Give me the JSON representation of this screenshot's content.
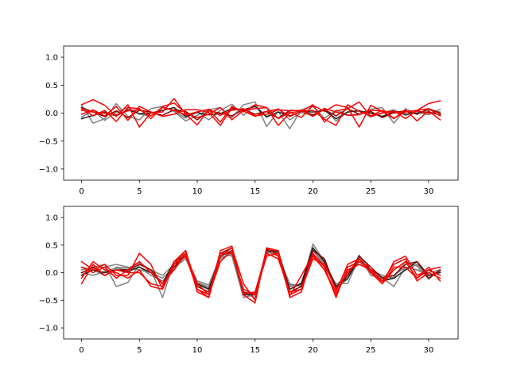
{
  "colors": {
    "gray": "#808080",
    "black": "#202020",
    "darkred": "#8b0000",
    "red": "#ff0000"
  },
  "chart_data": [
    {
      "type": "line",
      "title": "",
      "xlabel": "",
      "ylabel": "",
      "xlim": [
        -1.55,
        32.55
      ],
      "ylim": [
        -1.2,
        1.2
      ],
      "xticks": [
        0,
        5,
        10,
        15,
        20,
        25,
        30
      ],
      "xtick_labels": [
        "0",
        "5",
        "10",
        "15",
        "20",
        "25",
        "30"
      ],
      "yticks": [
        -1.0,
        -0.5,
        0.0,
        0.5,
        1.0
      ],
      "ytick_labels": [
        "−1.0",
        "−0.5",
        "0.0",
        "0.5",
        "1.0"
      ],
      "grid": false,
      "x": [
        0,
        1,
        2,
        3,
        4,
        5,
        6,
        7,
        8,
        9,
        10,
        11,
        12,
        13,
        14,
        15,
        16,
        17,
        18,
        19,
        20,
        21,
        22,
        23,
        24,
        25,
        26,
        27,
        28,
        29,
        30,
        31
      ],
      "series": [
        {
          "color": "gray",
          "values": [
            0.15,
            -0.18,
            -0.1,
            0.17,
            -0.06,
            -0.12,
            0.08,
            0.12,
            0.03,
            -0.14,
            -0.04,
            0.06,
            0.1,
            -0.08,
            0.15,
            0.2,
            -0.24,
            0.03,
            -0.28,
            0.06,
            0.12,
            -0.09,
            0.05,
            -0.03,
            -0.02,
            0.07,
            0.1,
            -0.18,
            0.08,
            -0.02,
            0.06,
            0.02
          ]
        },
        {
          "color": "gray",
          "values": [
            -0.07,
            0.05,
            -0.13,
            0.02,
            0.1,
            -0.02,
            -0.05,
            0.11,
            0.04,
            -0.09,
            0.03,
            -0.12,
            0.05,
            0.16,
            -0.04,
            0.13,
            -0.06,
            0.08,
            -0.12,
            0.01,
            -0.04,
            0.09,
            -0.14,
            0.02,
            0.05,
            -0.07,
            0.01,
            0.06,
            -0.04,
            0.03,
            -0.03,
            0.07
          ]
        },
        {
          "color": "black",
          "values": [
            -0.1,
            -0.04,
            0.02,
            -0.05,
            0.06,
            -0.01,
            0.0,
            0.05,
            0.1,
            -0.06,
            0.01,
            -0.03,
            -0.01,
            0.08,
            0.06,
            0.12,
            -0.07,
            0.02,
            -0.05,
            0.03,
            0.02,
            0.05,
            -0.1,
            0.02,
            0.04,
            0.0,
            -0.06,
            0.03,
            -0.02,
            0.0,
            0.02,
            -0.03
          ]
        },
        {
          "color": "darkred",
          "values": [
            0.1,
            0.02,
            -0.06,
            0.04,
            -0.08,
            0.05,
            0.02,
            -0.04,
            0.06,
            0.03,
            -0.12,
            0.04,
            0.0,
            -0.05,
            0.07,
            -0.02,
            0.03,
            -0.09,
            0.05,
            0.04,
            -0.03,
            0.06,
            -0.05,
            0.08,
            -0.02,
            0.03,
            -0.08,
            0.01,
            0.04,
            -0.02,
            0.08,
            0.0
          ]
        },
        {
          "color": "red",
          "values": [
            0.15,
            0.24,
            0.14,
            -0.06,
            0.15,
            -0.25,
            0.01,
            0.02,
            0.26,
            -0.02,
            -0.21,
            0.06,
            -0.16,
            0.12,
            0.02,
            0.15,
            0.1,
            -0.22,
            0.0,
            0.04,
            0.05,
            -0.11,
            -0.22,
            0.15,
            0.03,
            -0.05,
            0.05,
            -0.09,
            0.02,
            0.05,
            0.17,
            0.22
          ]
        },
        {
          "color": "red",
          "values": [
            0.08,
            -0.05,
            0.05,
            -0.15,
            0.1,
            0.08,
            -0.1,
            0.12,
            0.18,
            0.0,
            -0.08,
            -0.02,
            0.1,
            -0.12,
            0.05,
            0.08,
            0.1,
            -0.1,
            0.02,
            -0.08,
            0.14,
            0.03,
            0.15,
            0.1,
            -0.25,
            0.14,
            0.03,
            -0.1,
            0.06,
            -0.14,
            0.04,
            -0.12
          ]
        },
        {
          "color": "red",
          "values": [
            -0.02,
            0.06,
            -0.05,
            0.12,
            -0.13,
            0.12,
            0.02,
            -0.06,
            -0.02,
            0.06,
            0.06,
            0.01,
            -0.22,
            0.1,
            0.04,
            -0.06,
            0.03,
            0.07,
            -0.06,
            0.03,
            0.15,
            -0.16,
            0.04,
            0.08,
            0.2,
            -0.06,
            0.0,
            0.04,
            -0.1,
            0.05,
            0.08,
            -0.05
          ]
        },
        {
          "color": "red",
          "values": [
            0.05,
            0.02,
            0.0,
            -0.03,
            0.04,
            0.06,
            -0.05,
            0.1,
            0.05,
            -0.03,
            0.02,
            0.07,
            -0.04,
            0.05,
            0.08,
            -0.05,
            -0.02,
            0.06,
            0.04,
            0.05,
            -0.06,
            0.08,
            0.02,
            -0.04,
            -0.03,
            0.05,
            0.04,
            0.0,
            0.03,
            0.04,
            0.0,
            -0.02
          ]
        }
      ]
    },
    {
      "type": "line",
      "title": "",
      "xlabel": "",
      "ylabel": "",
      "xlim": [
        -1.55,
        32.55
      ],
      "ylim": [
        -1.2,
        1.2
      ],
      "xticks": [
        0,
        5,
        10,
        15,
        20,
        25,
        30
      ],
      "xtick_labels": [
        "0",
        "5",
        "10",
        "15",
        "20",
        "25",
        "30"
      ],
      "yticks": [
        -1.0,
        -0.5,
        0.0,
        0.5,
        1.0
      ],
      "ytick_labels": [
        "−1.0",
        "−0.5",
        "0.0",
        "0.5",
        "1.0"
      ],
      "grid": false,
      "x": [
        0,
        1,
        2,
        3,
        4,
        5,
        6,
        7,
        8,
        9,
        10,
        11,
        12,
        13,
        14,
        15,
        16,
        17,
        18,
        19,
        20,
        21,
        22,
        23,
        24,
        25,
        26,
        27,
        28,
        29,
        30,
        31
      ],
      "series": [
        {
          "color": "gray",
          "values": [
            0.05,
            0.1,
            0.15,
            -0.25,
            -0.18,
            0.15,
            0.05,
            -0.45,
            0.2,
            0.35,
            -0.22,
            -0.3,
            0.35,
            0.3,
            -0.45,
            -0.4,
            0.4,
            0.3,
            -0.2,
            -0.25,
            0.52,
            0.2,
            -0.28,
            -0.12,
            0.32,
            -0.05,
            -0.1,
            -0.25,
            0.1,
            0.05,
            -0.05,
            0.02
          ]
        },
        {
          "color": "gray",
          "values": [
            0.1,
            0.05,
            -0.05,
            0.1,
            0.08,
            0.18,
            0.05,
            -0.05,
            0.15,
            0.28,
            -0.15,
            -0.22,
            0.3,
            0.38,
            -0.38,
            -0.45,
            0.35,
            0.4,
            -0.3,
            -0.18,
            0.42,
            0.1,
            -0.2,
            -0.2,
            0.28,
            0.1,
            -0.15,
            -0.08,
            0.2,
            0.12,
            -0.12,
            0.05
          ]
        },
        {
          "color": "gray",
          "values": [
            -0.05,
            0.08,
            0.1,
            0.15,
            0.1,
            0.05,
            0.0,
            -0.1,
            0.1,
            0.25,
            -0.18,
            -0.25,
            0.25,
            0.35,
            -0.4,
            -0.35,
            0.38,
            0.3,
            -0.25,
            -0.2,
            0.45,
            0.18,
            -0.22,
            -0.05,
            0.25,
            0.05,
            -0.05,
            -0.1,
            0.05,
            0.15,
            -0.05,
            0.0
          ]
        },
        {
          "color": "gray",
          "values": [
            0.0,
            -0.05,
            0.02,
            0.08,
            0.05,
            0.1,
            -0.05,
            -0.15,
            0.05,
            0.32,
            -0.2,
            -0.28,
            0.28,
            0.32,
            -0.35,
            -0.38,
            0.3,
            0.35,
            -0.22,
            -0.22,
            0.4,
            0.15,
            -0.25,
            -0.1,
            0.2,
            0.0,
            -0.08,
            -0.05,
            0.1,
            0.05,
            0.0,
            0.05
          ]
        },
        {
          "color": "black",
          "values": [
            -0.05,
            0.05,
            0.0,
            0.05,
            0.02,
            0.1,
            0.0,
            -0.2,
            0.2,
            0.3,
            -0.2,
            -0.3,
            0.3,
            0.4,
            -0.4,
            -0.4,
            0.4,
            0.35,
            -0.3,
            -0.2,
            0.45,
            0.2,
            -0.25,
            -0.1,
            0.25,
            0.05,
            -0.15,
            -0.1,
            0.05,
            0.2,
            -0.05,
            0.0
          ]
        },
        {
          "color": "darkred",
          "values": [
            0.0,
            0.1,
            -0.05,
            0.05,
            0.05,
            0.15,
            0.05,
            -0.2,
            0.1,
            0.35,
            -0.25,
            -0.35,
            0.35,
            0.45,
            -0.35,
            -0.4,
            0.42,
            0.38,
            -0.35,
            -0.25,
            0.4,
            0.25,
            -0.3,
            -0.05,
            0.3,
            0.1,
            -0.1,
            -0.05,
            0.15,
            0.2,
            -0.1,
            0.05
          ]
        },
        {
          "color": "red",
          "values": [
            0.2,
            0.05,
            0.15,
            -0.05,
            -0.05,
            0.35,
            0.15,
            -0.3,
            0.15,
            0.4,
            -0.3,
            -0.45,
            0.4,
            0.48,
            -0.4,
            -0.55,
            0.45,
            0.3,
            -0.42,
            -0.05,
            0.32,
            0.05,
            -0.35,
            0.15,
            0.25,
            0.02,
            -0.2,
            0.1,
            0.1,
            -0.1,
            0.05,
            0.1
          ]
        },
        {
          "color": "red",
          "values": [
            -0.1,
            0.2,
            0.05,
            0.0,
            -0.1,
            0.05,
            -0.25,
            -0.3,
            0.2,
            0.4,
            -0.35,
            -0.45,
            0.3,
            0.45,
            -0.2,
            -0.5,
            0.45,
            0.4,
            -0.45,
            -0.35,
            0.35,
            0.1,
            -0.45,
            0.1,
            0.2,
            0.1,
            -0.2,
            0.2,
            0.3,
            -0.05,
            0.05,
            -0.05
          ]
        },
        {
          "color": "red",
          "values": [
            0.1,
            0.0,
            0.1,
            -0.1,
            0.05,
            0.2,
            0.0,
            -0.2,
            0.05,
            0.35,
            -0.2,
            -0.4,
            0.2,
            0.4,
            -0.38,
            -0.35,
            0.35,
            0.25,
            -0.35,
            -0.3,
            0.3,
            0.05,
            -0.4,
            0.05,
            0.15,
            0.05,
            -0.15,
            0.15,
            0.25,
            -0.15,
            0.0,
            -0.1
          ]
        },
        {
          "color": "red",
          "values": [
            -0.2,
            0.15,
            -0.05,
            0.05,
            0.0,
            0.0,
            -0.2,
            -0.25,
            0.15,
            0.3,
            -0.3,
            -0.4,
            0.35,
            0.35,
            -0.3,
            -0.4,
            0.3,
            0.35,
            -0.4,
            -0.3,
            0.25,
            0.15,
            -0.3,
            0.0,
            0.25,
            0.0,
            -0.2,
            0.05,
            0.2,
            -0.1,
            0.1,
            -0.15
          ]
        }
      ]
    }
  ]
}
